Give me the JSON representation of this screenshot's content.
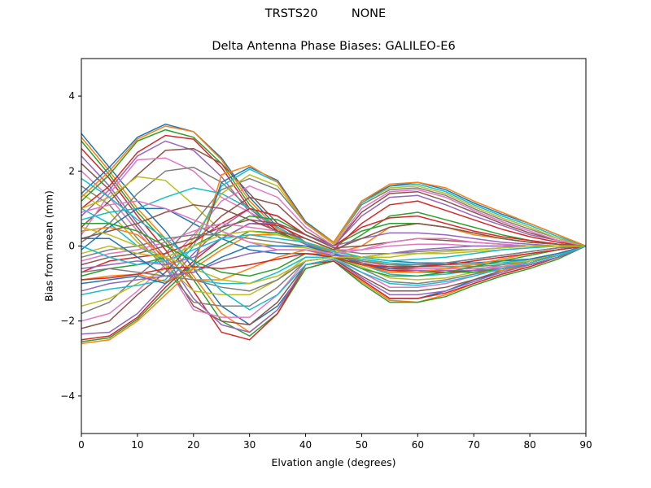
{
  "figure": {
    "suptitle": "TRSTS20         NONE",
    "title": "Delta Antenna Phase Biases: GALILEO-E6",
    "xlabel": "Elvation angle (degrees)",
    "ylabel": "Bias from mean (mm)"
  },
  "chart_data": {
    "type": "line",
    "title": "Delta Antenna Phase Biases: GALILEO-E6",
    "suptitle": "TRSTS20         NONE",
    "xlabel": "Elvation angle (degrees)",
    "ylabel": "Bias from mean (mm)",
    "xlim": [
      0,
      90
    ],
    "ylim": [
      -5,
      5
    ],
    "xticks": [
      0,
      10,
      20,
      30,
      40,
      50,
      60,
      70,
      80,
      90
    ],
    "yticks": [
      -4,
      -2,
      0,
      2,
      4
    ],
    "grid": false,
    "legend": null,
    "colors": [
      "#1f77b4",
      "#ff7f0e",
      "#2ca02c",
      "#d62728",
      "#9467bd",
      "#8c564b",
      "#e377c2",
      "#7f7f7f",
      "#bcbd22",
      "#17becf"
    ],
    "x": [
      0,
      5,
      10,
      15,
      20,
      25,
      30,
      35,
      40,
      45,
      50,
      55,
      60,
      65,
      70,
      75,
      80,
      85,
      90
    ],
    "series": [
      {
        "values": [
          3.0,
          2.1,
          1.2,
          0.4,
          -0.6,
          -1.6,
          -2.1,
          -1.6,
          -0.6,
          -0.4,
          -0.9,
          -1.4,
          -1.4,
          -1.2,
          -0.9,
          -0.7,
          -0.5,
          -0.3,
          0.0
        ]
      },
      {
        "values": [
          2.9,
          2.0,
          1.0,
          0.2,
          -0.8,
          -1.8,
          -2.3,
          -1.7,
          -0.6,
          -0.4,
          -0.95,
          -1.45,
          -1.5,
          -1.3,
          -1.0,
          -0.75,
          -0.55,
          -0.3,
          0.0
        ]
      },
      {
        "values": [
          2.8,
          1.9,
          0.9,
          0.1,
          -0.9,
          -2.0,
          -2.4,
          -1.8,
          -0.6,
          -0.4,
          -1.0,
          -1.5,
          -1.5,
          -1.35,
          -1.05,
          -0.8,
          -0.6,
          -0.35,
          0.0
        ]
      },
      {
        "values": [
          2.6,
          1.8,
          0.8,
          -0.1,
          -1.2,
          -2.3,
          -2.5,
          -1.8,
          -0.5,
          -0.4,
          -0.9,
          -1.4,
          -1.4,
          -1.25,
          -1.0,
          -0.75,
          -0.55,
          -0.3,
          0.0
        ]
      },
      {
        "values": [
          2.4,
          1.6,
          0.6,
          -0.3,
          -1.4,
          -2.1,
          -2.3,
          -1.7,
          -0.5,
          -0.35,
          -0.85,
          -1.3,
          -1.3,
          -1.2,
          -0.95,
          -0.7,
          -0.5,
          -0.3,
          0.0
        ]
      },
      {
        "values": [
          2.2,
          1.5,
          0.5,
          -0.4,
          -1.6,
          -2.0,
          -2.1,
          -1.5,
          -0.5,
          -0.35,
          -0.8,
          -1.2,
          -1.2,
          -1.1,
          -0.9,
          -0.65,
          -0.5,
          -0.3,
          0.0
        ]
      },
      {
        "values": [
          2.0,
          1.3,
          0.4,
          -0.5,
          -1.7,
          -1.9,
          -1.9,
          -1.3,
          -0.4,
          -0.3,
          -0.7,
          -1.1,
          -1.1,
          -1.0,
          -0.8,
          -0.6,
          -0.45,
          -0.25,
          0.0
        ]
      },
      {
        "values": [
          1.6,
          1.1,
          0.2,
          -0.6,
          -1.5,
          -1.6,
          -1.6,
          -1.1,
          -0.4,
          -0.3,
          -0.6,
          -0.95,
          -1.0,
          -0.9,
          -0.75,
          -0.6,
          -0.4,
          -0.25,
          0.0
        ]
      },
      {
        "values": [
          1.4,
          0.9,
          0.1,
          -0.5,
          -1.2,
          -1.3,
          -1.3,
          -0.9,
          -0.3,
          -0.3,
          -0.55,
          -0.85,
          -0.9,
          -0.85,
          -0.7,
          -0.55,
          -0.4,
          -0.2,
          0.0
        ]
      },
      {
        "values": [
          1.0,
          0.6,
          0.0,
          -0.4,
          -0.9,
          -1.0,
          -1.0,
          -0.7,
          -0.3,
          -0.3,
          -0.5,
          -0.75,
          -0.8,
          -0.75,
          -0.65,
          -0.5,
          -0.35,
          -0.2,
          0.0
        ]
      },
      {
        "values": [
          1.4,
          2.1,
          2.9,
          3.25,
          3.05,
          2.35,
          1.3,
          0.5,
          0.1,
          -0.2,
          -0.5,
          -0.7,
          -0.7,
          -0.7,
          -0.7,
          -0.65,
          -0.5,
          -0.3,
          0.0
        ]
      },
      {
        "values": [
          1.3,
          2.0,
          2.85,
          3.2,
          3.05,
          2.3,
          1.2,
          0.45,
          0.1,
          -0.2,
          -0.5,
          -0.7,
          -0.7,
          -0.7,
          -0.7,
          -0.65,
          -0.5,
          -0.3,
          0.0
        ]
      },
      {
        "values": [
          1.2,
          1.9,
          2.8,
          3.1,
          2.9,
          2.2,
          1.1,
          0.4,
          0.05,
          -0.2,
          -0.5,
          -0.65,
          -0.7,
          -0.7,
          -0.7,
          -0.6,
          -0.5,
          -0.3,
          0.0
        ]
      },
      {
        "values": [
          1.0,
          1.6,
          2.5,
          2.95,
          2.85,
          2.1,
          1.0,
          0.4,
          0.05,
          -0.2,
          -0.5,
          -0.65,
          -0.65,
          -0.7,
          -0.65,
          -0.6,
          -0.5,
          -0.3,
          0.0
        ]
      },
      {
        "values": [
          0.8,
          1.5,
          2.4,
          2.8,
          2.55,
          1.85,
          0.9,
          0.35,
          0.05,
          -0.2,
          -0.45,
          -0.6,
          -0.65,
          -0.65,
          -0.65,
          -0.6,
          -0.5,
          -0.3,
          0.0
        ]
      },
      {
        "values": [
          0.5,
          1.2,
          1.9,
          2.55,
          2.6,
          2.2,
          1.4,
          0.6,
          0.1,
          -0.2,
          -0.45,
          -0.6,
          -0.6,
          -0.6,
          -0.6,
          -0.55,
          -0.45,
          -0.25,
          0.0
        ]
      },
      {
        "values": [
          0.3,
          1.4,
          2.3,
          2.35,
          2.0,
          1.3,
          0.9,
          0.5,
          0.1,
          -0.2,
          -0.4,
          -0.55,
          -0.6,
          -0.6,
          -0.6,
          -0.55,
          -0.45,
          -0.25,
          0.0
        ]
      },
      {
        "values": [
          0.1,
          0.6,
          1.4,
          2.0,
          2.1,
          1.7,
          1.0,
          0.5,
          0.1,
          -0.2,
          -0.4,
          -0.5,
          -0.55,
          -0.55,
          -0.55,
          -0.5,
          -0.4,
          -0.25,
          0.0
        ]
      },
      {
        "values": [
          1.0,
          1.3,
          1.85,
          1.75,
          1.1,
          0.4,
          0.1,
          0.0,
          -0.05,
          -0.2,
          -0.35,
          -0.5,
          -0.5,
          -0.5,
          -0.5,
          -0.45,
          -0.4,
          -0.2,
          0.0
        ]
      },
      {
        "values": [
          0.7,
          0.9,
          1.0,
          1.3,
          1.55,
          1.4,
          1.0,
          0.5,
          0.1,
          -0.2,
          -0.35,
          -0.45,
          -0.5,
          -0.5,
          -0.5,
          -0.45,
          -0.35,
          -0.2,
          0.0
        ]
      },
      {
        "values": [
          -0.1,
          0.5,
          1.0,
          1.0,
          0.6,
          0.2,
          -0.1,
          -0.2,
          -0.2,
          -0.25,
          -0.3,
          -0.4,
          -0.45,
          -0.45,
          -0.45,
          -0.4,
          -0.35,
          -0.2,
          0.0
        ]
      },
      {
        "values": [
          -2.6,
          -2.5,
          -2.0,
          -1.3,
          -0.6,
          -0.1,
          0.3,
          0.3,
          0.1,
          -0.2,
          0.0,
          0.5,
          0.6,
          0.5,
          0.3,
          0.2,
          0.1,
          0.05,
          0.0
        ]
      },
      {
        "values": [
          -2.55,
          -2.45,
          -1.95,
          -1.2,
          -0.5,
          0.0,
          0.4,
          0.35,
          0.1,
          -0.15,
          0.3,
          0.8,
          0.9,
          0.7,
          0.5,
          0.3,
          0.15,
          0.05,
          0.0
        ]
      },
      {
        "values": [
          -2.5,
          -2.4,
          -1.9,
          -1.1,
          -0.4,
          0.2,
          0.6,
          0.55,
          0.2,
          -0.1,
          0.6,
          1.1,
          1.2,
          0.95,
          0.7,
          0.45,
          0.25,
          0.1,
          0.0
        ]
      },
      {
        "values": [
          -2.35,
          -2.3,
          -1.8,
          -1.0,
          -0.2,
          0.5,
          1.0,
          0.8,
          0.3,
          0.0,
          0.8,
          1.3,
          1.35,
          1.1,
          0.8,
          0.55,
          0.3,
          0.15,
          0.0
        ]
      },
      {
        "values": [
          -2.2,
          -2.0,
          -1.3,
          -0.7,
          0.1,
          0.8,
          1.3,
          1.1,
          0.4,
          0.0,
          0.9,
          1.4,
          1.45,
          1.2,
          0.9,
          0.6,
          0.35,
          0.15,
          0.0
        ]
      },
      {
        "values": [
          -2.0,
          -1.8,
          -1.2,
          -0.5,
          0.3,
          1.2,
          1.6,
          1.3,
          0.5,
          0.0,
          1.0,
          1.45,
          1.5,
          1.3,
          0.95,
          0.65,
          0.4,
          0.15,
          0.0
        ]
      },
      {
        "values": [
          -1.8,
          -1.5,
          -0.8,
          -0.2,
          0.6,
          1.5,
          1.8,
          1.5,
          0.6,
          0.05,
          1.1,
          1.5,
          1.55,
          1.35,
          1.0,
          0.7,
          0.45,
          0.2,
          0.0
        ]
      },
      {
        "values": [
          -1.6,
          -1.4,
          -1.0,
          -0.6,
          0.2,
          1.4,
          1.9,
          1.6,
          0.6,
          0.05,
          1.15,
          1.55,
          1.6,
          1.4,
          1.05,
          0.75,
          0.5,
          0.2,
          0.0
        ]
      },
      {
        "values": [
          -1.3,
          -1.15,
          -1.05,
          -0.9,
          0.0,
          1.6,
          2.05,
          1.7,
          0.6,
          0.1,
          1.15,
          1.6,
          1.65,
          1.45,
          1.1,
          0.8,
          0.55,
          0.25,
          0.0
        ]
      },
      {
        "values": [
          -1.0,
          -0.9,
          -0.8,
          -1.0,
          -0.5,
          1.7,
          2.1,
          1.75,
          0.65,
          0.1,
          1.2,
          1.6,
          1.7,
          1.5,
          1.15,
          0.85,
          0.6,
          0.3,
          0.0
        ]
      },
      {
        "values": [
          -0.9,
          -0.8,
          -0.75,
          -0.95,
          -0.6,
          1.9,
          2.15,
          1.7,
          0.6,
          0.1,
          1.2,
          1.65,
          1.7,
          1.55,
          1.2,
          0.9,
          0.6,
          0.3,
          0.0
        ]
      },
      {
        "values": [
          -0.8,
          -0.6,
          -0.5,
          -0.3,
          0.0,
          0.4,
          0.8,
          0.7,
          0.3,
          0.0,
          0.4,
          0.6,
          0.6,
          0.5,
          0.35,
          0.2,
          0.1,
          0.05,
          0.0
        ]
      },
      {
        "values": [
          -0.7,
          -0.4,
          -0.3,
          -0.2,
          0.1,
          0.6,
          1.0,
          0.8,
          0.3,
          0.0,
          0.5,
          0.75,
          0.8,
          0.6,
          0.4,
          0.25,
          0.15,
          0.05,
          0.0
        ]
      },
      {
        "values": [
          -0.6,
          -0.5,
          -0.4,
          -0.5,
          -0.3,
          0.2,
          0.6,
          0.6,
          0.3,
          0.0,
          0.2,
          0.35,
          0.35,
          0.3,
          0.2,
          0.1,
          0.05,
          0.0,
          0.0
        ]
      },
      {
        "values": [
          -0.5,
          -0.3,
          -0.2,
          0.0,
          0.2,
          0.5,
          0.7,
          0.6,
          0.3,
          -0.05,
          0.0,
          0.1,
          0.2,
          0.15,
          0.1,
          0.05,
          0.0,
          0.0,
          0.0
        ]
      },
      {
        "values": [
          -0.4,
          -0.2,
          -0.1,
          0.1,
          0.4,
          0.6,
          0.5,
          0.4,
          0.2,
          -0.1,
          -0.1,
          0.0,
          0.05,
          0.05,
          0.0,
          0.0,
          0.0,
          0.0,
          0.0
        ]
      },
      {
        "values": [
          -0.3,
          -0.1,
          0.0,
          0.2,
          0.3,
          0.3,
          0.2,
          0.1,
          0.0,
          -0.1,
          -0.2,
          -0.2,
          -0.15,
          -0.1,
          -0.1,
          -0.05,
          0.0,
          0.0,
          0.0
        ]
      },
      {
        "values": [
          -0.2,
          0.0,
          -0.2,
          -0.3,
          0.0,
          0.3,
          0.4,
          0.3,
          0.1,
          -0.1,
          -0.3,
          -0.3,
          -0.2,
          -0.2,
          -0.15,
          -0.1,
          -0.05,
          0.0,
          0.0
        ]
      },
      {
        "values": [
          0.0,
          -0.3,
          -0.5,
          -0.4,
          -0.1,
          0.2,
          0.3,
          0.2,
          0.1,
          -0.15,
          -0.3,
          -0.4,
          -0.35,
          -0.3,
          -0.2,
          -0.1,
          -0.05,
          0.0,
          0.0
        ]
      },
      {
        "values": [
          0.2,
          0.2,
          -0.3,
          -0.8,
          -0.7,
          -0.3,
          0.0,
          0.0,
          0.0,
          -0.2,
          -0.5,
          -0.6,
          -0.55,
          -0.45,
          -0.35,
          -0.25,
          -0.15,
          -0.05,
          0.0
        ]
      },
      {
        "values": [
          0.4,
          0.5,
          0.3,
          -0.3,
          -0.9,
          -0.9,
          -0.6,
          -0.3,
          -0.1,
          -0.3,
          -0.5,
          -0.7,
          -0.7,
          -0.6,
          -0.5,
          -0.35,
          -0.2,
          -0.1,
          0.0
        ]
      },
      {
        "values": [
          0.6,
          0.6,
          0.4,
          0.0,
          -0.4,
          -0.7,
          -0.8,
          -0.6,
          -0.2,
          -0.3,
          -0.6,
          -0.8,
          -0.8,
          -0.7,
          -0.55,
          -0.4,
          -0.25,
          -0.1,
          0.0
        ]
      },
      {
        "values": [
          -0.9,
          -0.85,
          -0.75,
          -0.6,
          -0.55,
          -0.6,
          -0.5,
          -0.35,
          -0.2,
          -0.3,
          -0.5,
          -0.55,
          -0.55,
          -0.5,
          -0.4,
          -0.3,
          -0.2,
          -0.1,
          0.0
        ]
      },
      {
        "values": [
          -1.2,
          -1.0,
          -0.9,
          -0.8,
          -0.7,
          -0.4,
          -0.2,
          -0.1,
          -0.1,
          -0.25,
          -0.3,
          -0.2,
          -0.1,
          -0.05,
          0.0,
          0.0,
          0.0,
          0.0,
          0.0
        ]
      },
      {
        "values": [
          0.2,
          0.4,
          0.6,
          0.9,
          1.1,
          1.0,
          0.7,
          0.4,
          0.2,
          -0.1,
          0.2,
          0.5,
          0.6,
          0.5,
          0.35,
          0.2,
          0.1,
          0.05,
          0.0
        ]
      },
      {
        "values": [
          0.9,
          1.1,
          1.2,
          1.0,
          0.7,
          0.4,
          0.1,
          -0.1,
          -0.1,
          -0.2,
          -0.1,
          0.1,
          0.2,
          0.2,
          0.1,
          0.05,
          0.0,
          0.0,
          0.0
        ]
      },
      {
        "values": [
          -0.7,
          -0.6,
          -0.7,
          -0.8,
          -0.9,
          -1.1,
          -1.2,
          -0.9,
          -0.4,
          -0.3,
          -0.4,
          -0.5,
          -0.5,
          -0.45,
          -0.35,
          -0.25,
          -0.15,
          -0.05,
          0.0
        ]
      },
      {
        "values": [
          0.5,
          0.3,
          0.0,
          -0.3,
          -0.6,
          -0.9,
          -1.0,
          -0.8,
          -0.4,
          -0.3,
          -0.3,
          -0.2,
          -0.2,
          -0.15,
          -0.1,
          -0.05,
          0.0,
          0.0,
          0.0
        ]
      },
      {
        "values": [
          1.8,
          1.3,
          0.7,
          0.2,
          -0.4,
          -1.2,
          -1.7,
          -1.3,
          -0.5,
          -0.35,
          -0.7,
          -1.0,
          -1.05,
          -0.95,
          -0.8,
          -0.6,
          -0.45,
          -0.25,
          0.0
        ]
      }
    ]
  }
}
